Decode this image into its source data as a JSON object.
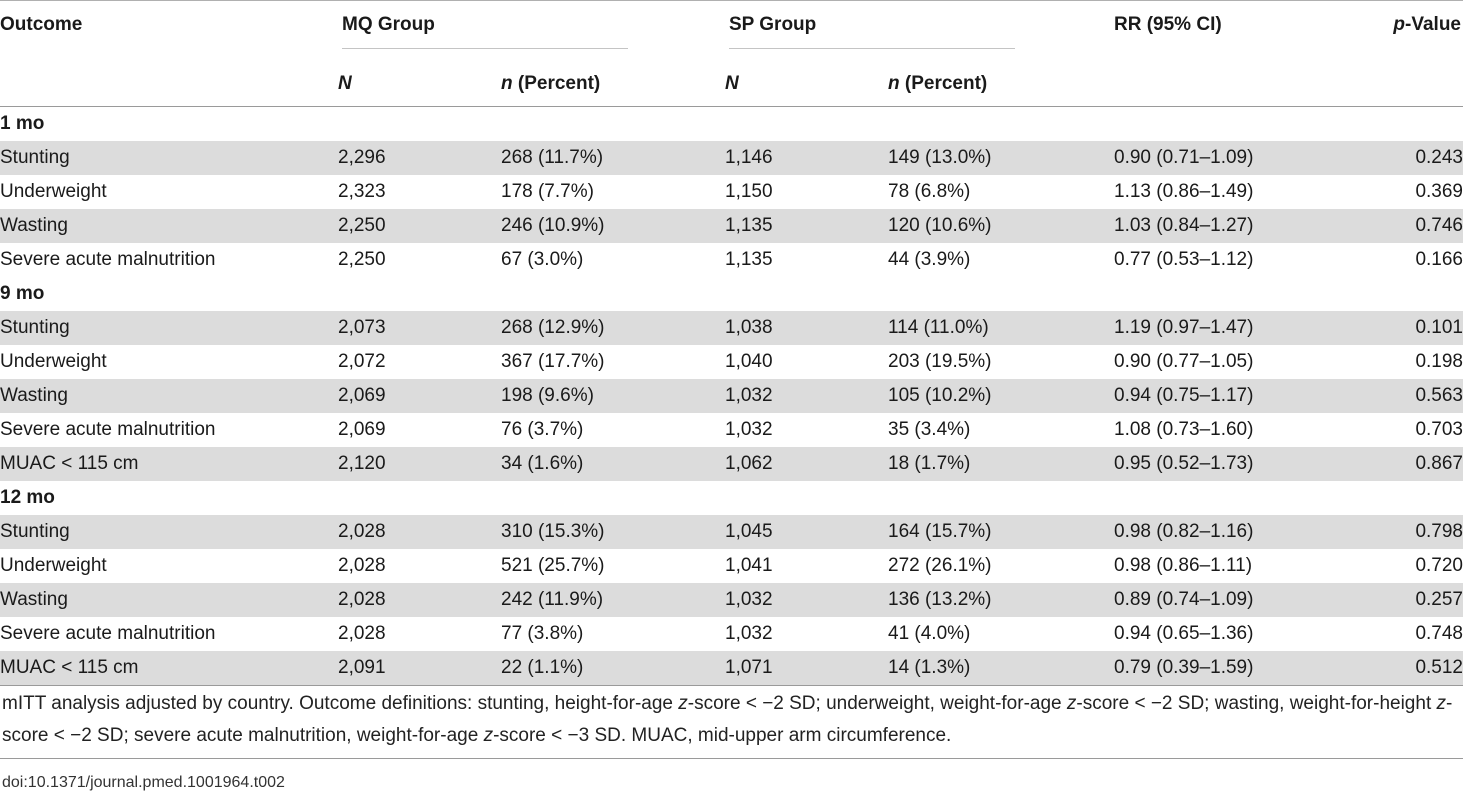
{
  "headers": {
    "outcome": "Outcome",
    "mq_group": "MQ Group",
    "sp_group": "SP Group",
    "rr": "RR (95% CI)",
    "p_italic": "p",
    "p_rest": "-Value",
    "N": "N",
    "n_italic": "n",
    "n_rest": " (Percent)"
  },
  "sections": [
    {
      "label": "1 mo",
      "rows": [
        {
          "outcome": "Stunting",
          "mq_N": "2,296",
          "mq_n": "268 (11.7%)",
          "sp_N": "1,146",
          "sp_n": "149 (13.0%)",
          "rr": "0.90 (0.71–1.09)",
          "p": "0.243"
        },
        {
          "outcome": "Underweight",
          "mq_N": "2,323",
          "mq_n": "178 (7.7%)",
          "sp_N": "1,150",
          "sp_n": "78 (6.8%)",
          "rr": "1.13 (0.86–1.49)",
          "p": "0.369"
        },
        {
          "outcome": "Wasting",
          "mq_N": "2,250",
          "mq_n": "246 (10.9%)",
          "sp_N": "1,135",
          "sp_n": "120 (10.6%)",
          "rr": "1.03 (0.84–1.27)",
          "p": "0.746"
        },
        {
          "outcome": "Severe acute malnutrition",
          "mq_N": "2,250",
          "mq_n": "67 (3.0%)",
          "sp_N": "1,135",
          "sp_n": "44 (3.9%)",
          "rr": "0.77 (0.53–1.12)",
          "p": "0.166"
        }
      ]
    },
    {
      "label": "9 mo",
      "rows": [
        {
          "outcome": "Stunting",
          "mq_N": "2,073",
          "mq_n": "268 (12.9%)",
          "sp_N": "1,038",
          "sp_n": "114 (11.0%)",
          "rr": "1.19 (0.97–1.47)",
          "p": "0.101"
        },
        {
          "outcome": "Underweight",
          "mq_N": "2,072",
          "mq_n": "367 (17.7%)",
          "sp_N": "1,040",
          "sp_n": "203 (19.5%)",
          "rr": "0.90 (0.77–1.05)",
          "p": "0.198"
        },
        {
          "outcome": "Wasting",
          "mq_N": "2,069",
          "mq_n": "198 (9.6%)",
          "sp_N": "1,032",
          "sp_n": "105 (10.2%)",
          "rr": "0.94 (0.75–1.17)",
          "p": "0.563"
        },
        {
          "outcome": "Severe acute malnutrition",
          "mq_N": "2,069",
          "mq_n": "76 (3.7%)",
          "sp_N": "1,032",
          "sp_n": "35 (3.4%)",
          "rr": "1.08 (0.73–1.60)",
          "p": "0.703"
        },
        {
          "outcome": "MUAC < 115 cm",
          "mq_N": "2,120",
          "mq_n": "34 (1.6%)",
          "sp_N": "1,062",
          "sp_n": "18 (1.7%)",
          "rr": "0.95 (0.52–1.73)",
          "p": "0.867"
        }
      ]
    },
    {
      "label": "12 mo",
      "rows": [
        {
          "outcome": "Stunting",
          "mq_N": "2,028",
          "mq_n": "310 (15.3%)",
          "sp_N": "1,045",
          "sp_n": "164 (15.7%)",
          "rr": "0.98 (0.82–1.16)",
          "p": "0.798"
        },
        {
          "outcome": "Underweight",
          "mq_N": "2,028",
          "mq_n": "521 (25.7%)",
          "sp_N": "1,041",
          "sp_n": "272 (26.1%)",
          "rr": "0.98 (0.86–1.11)",
          "p": "0.720"
        },
        {
          "outcome": "Wasting",
          "mq_N": "2,028",
          "mq_n": "242 (11.9%)",
          "sp_N": "1,032",
          "sp_n": "136 (13.2%)",
          "rr": "0.89 (0.74–1.09)",
          "p": "0.257"
        },
        {
          "outcome": "Severe acute malnutrition",
          "mq_N": "2,028",
          "mq_n": "77 (3.8%)",
          "sp_N": "1,032",
          "sp_n": "41 (4.0%)",
          "rr": "0.94 (0.65–1.36)",
          "p": "0.748"
        },
        {
          "outcome": "MUAC < 115 cm",
          "mq_N": "2,091",
          "mq_n": "22 (1.1%)",
          "sp_N": "1,071",
          "sp_n": "14 (1.3%)",
          "rr": "0.79 (0.39–1.59)",
          "p": "0.512"
        }
      ]
    }
  ],
  "footnote": {
    "p1": "mITT analysis adjusted by country. Outcome definitions: stunting, height-for-age ",
    "z1": "z",
    "p2": "-score < −2 SD; underweight, weight-for-age ",
    "z2": "z",
    "p3": "-score < −2 SD; wasting, weight-for-height ",
    "z3": "z",
    "p4": "-score < −2 SD; severe acute malnutrition, weight-for-age ",
    "z4": "z",
    "p5": "-score < −3 SD. MUAC, mid-upper arm circumference."
  },
  "doi": "doi:10.1371/journal.pmed.1001964.t002"
}
